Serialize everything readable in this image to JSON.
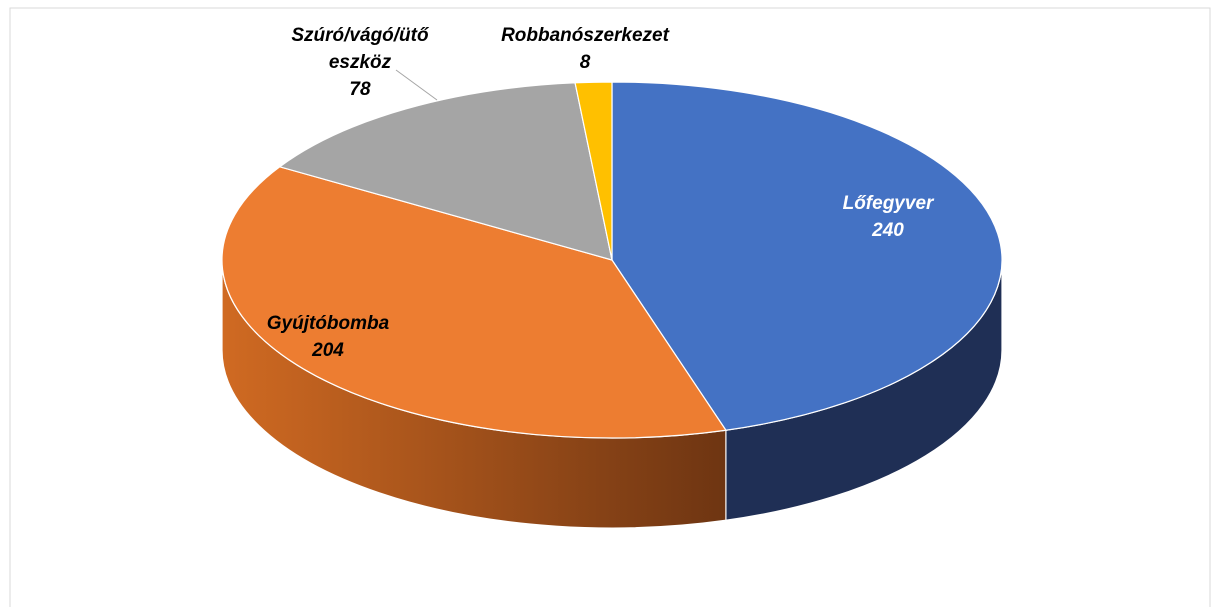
{
  "chart_data": {
    "type": "pie",
    "categories": [
      "Lőfegyver",
      "Gyújtóbomba",
      "Szúró/vágó/ütő eszköz",
      "Robbanószerkezet"
    ],
    "values": [
      240,
      204,
      78,
      8
    ],
    "colors": [
      "#4472c4",
      "#ed7d31",
      "#a5a5a5",
      "#ffc000"
    ],
    "side_colors": [
      "#1f2f55",
      "#8a4519",
      "#6b6b6b",
      "#a07800"
    ]
  }
}
